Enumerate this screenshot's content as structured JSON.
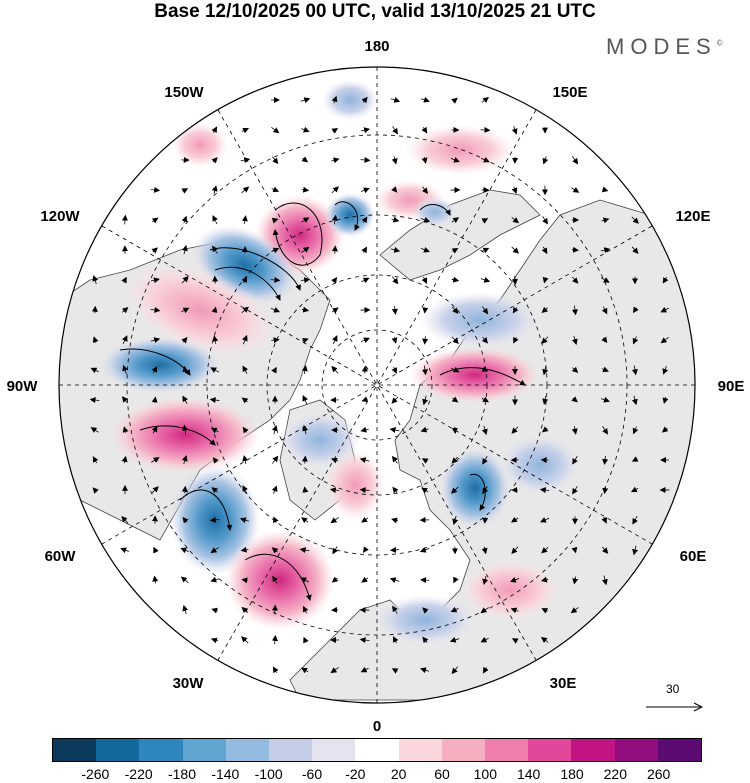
{
  "title": "Base 12/10/2025 00 UTC, valid 13/10/2025 21 UTC",
  "brand": "MODES",
  "brand_mark": "©",
  "longitude_labels": {
    "top": "180",
    "top_left": "150W",
    "top_right": "150E",
    "upper_left": "120W",
    "upper_right": "120E",
    "left": "90W",
    "right": "90E",
    "lower_left": "60W",
    "lower_right": "60E",
    "bottom_left": "30W",
    "bottom_right": "30E",
    "bottom": "0"
  },
  "reference_vector": {
    "label": "30",
    "icon": "arrow-right-icon"
  },
  "colorbar": {
    "ticks": [
      "-260",
      "-220",
      "-180",
      "-140",
      "-100",
      "-60",
      "-20",
      "20",
      "60",
      "100",
      "140",
      "180",
      "220",
      "260"
    ],
    "colors": [
      "#0b3a5c",
      "#13689c",
      "#2f86bd",
      "#5fa5d0",
      "#93bde0",
      "#c3cde6",
      "#e6e3f1",
      "#ffffff",
      "#fbd6dc",
      "#f6afc1",
      "#f07eac",
      "#e2479b",
      "#c21583",
      "#930d7f",
      "#5c0b72"
    ]
  },
  "map_colors": {
    "land": "#e8e8e8",
    "ocean": "#ffffff",
    "positive": "#f07eac",
    "negative": "#2f86bd"
  }
}
